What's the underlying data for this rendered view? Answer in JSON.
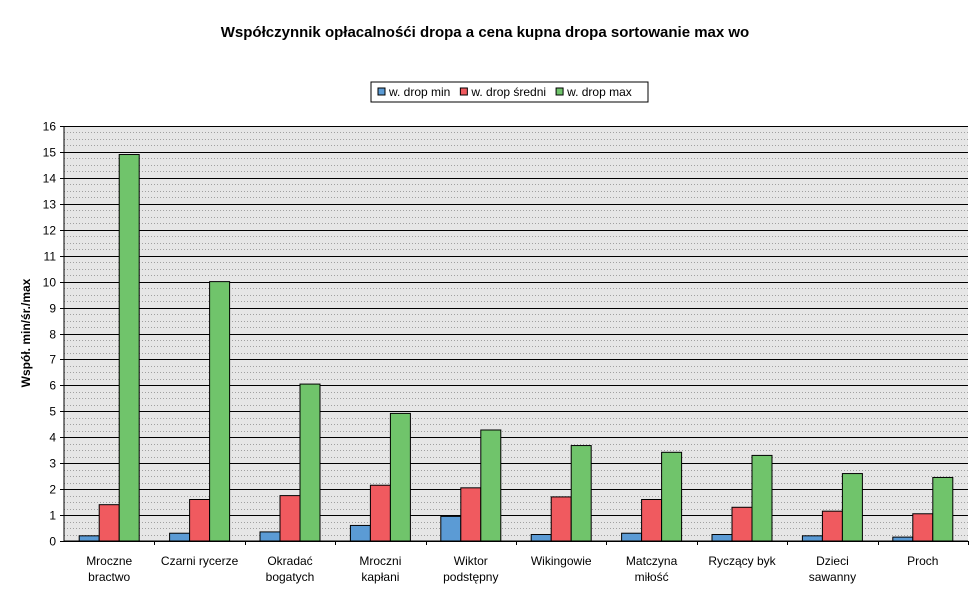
{
  "chart_data": {
    "type": "bar",
    "title": "Współczynnik opłacalnośći dropa a cena kupna dropa sortowanie max wo",
    "ylabel": "Współ. min/śr./max",
    "xlabel": "",
    "ylim": [
      0,
      16
    ],
    "y_ticks": [
      "0",
      "1",
      "2",
      "3",
      "4",
      "5",
      "6",
      "7",
      "8",
      "9",
      "10",
      "11",
      "12",
      "13",
      "14",
      "15",
      "16"
    ],
    "grid": true,
    "legend_position": "top-center",
    "categories": [
      [
        "Mroczne",
        "bractwo"
      ],
      [
        "Czarni rycerze"
      ],
      [
        "Okradać",
        "bogatych"
      ],
      [
        "Mroczni",
        "kapłani"
      ],
      [
        "Wiktor",
        "podstępny"
      ],
      [
        "Wikingowie"
      ],
      [
        "Matczyna",
        "miłość"
      ],
      [
        "Ryczący byk"
      ],
      [
        "Dzieci",
        "sawanny"
      ],
      [
        "Proch"
      ]
    ],
    "series": [
      {
        "name": "w. drop min",
        "color": "#5b9bd5",
        "values": [
          0.2,
          0.3,
          0.35,
          0.6,
          0.95,
          0.25,
          0.3,
          0.25,
          0.2,
          0.15
        ]
      },
      {
        "name": "w. drop średni",
        "color": "#f05a5f",
        "values": [
          1.4,
          1.6,
          1.75,
          2.15,
          2.05,
          1.7,
          1.6,
          1.3,
          1.15,
          1.05
        ]
      },
      {
        "name": "w. drop max",
        "color": "#70c46b",
        "values": [
          14.9,
          10.0,
          6.05,
          4.92,
          4.28,
          3.68,
          3.42,
          3.3,
          2.6,
          2.45
        ]
      }
    ]
  }
}
